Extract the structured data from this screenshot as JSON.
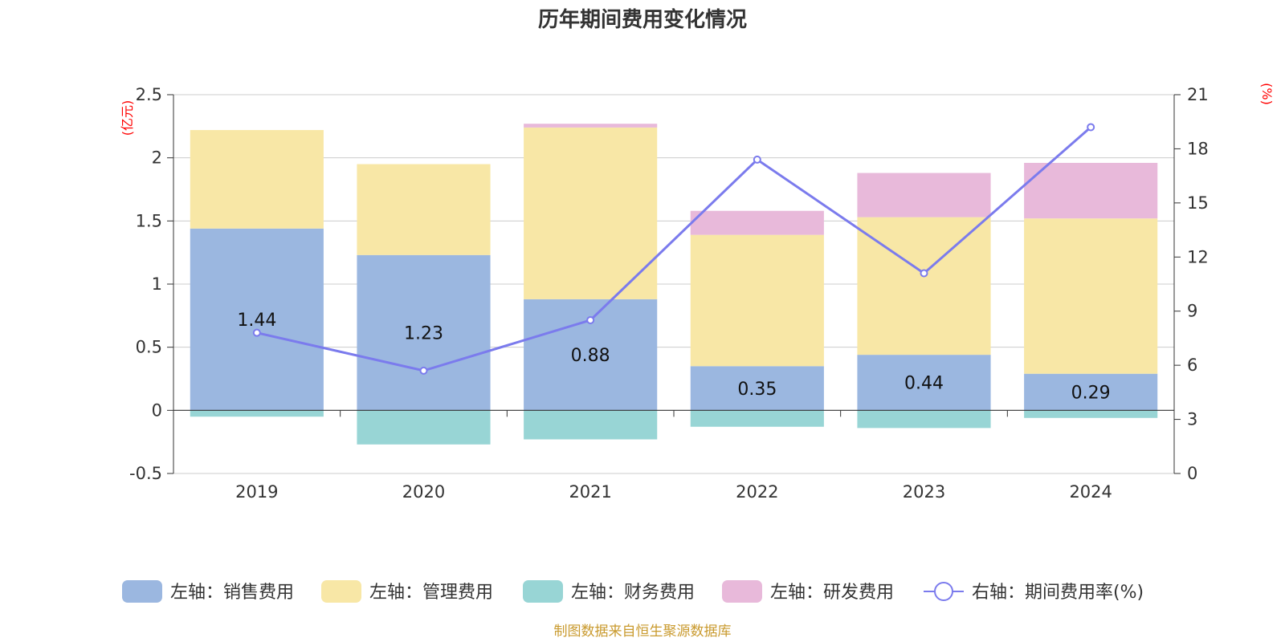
{
  "chart_data": {
    "type": "bar",
    "title": "历年期间费用变化情况",
    "categories": [
      "2019",
      "2020",
      "2021",
      "2022",
      "2023",
      "2024"
    ],
    "left_axis": {
      "unit": "(亿元)",
      "ylim": [
        -0.5,
        2.5
      ],
      "ticks": [
        "-0.5",
        "0",
        "0.5",
        "1",
        "1.5",
        "2",
        "2.5"
      ]
    },
    "right_axis": {
      "unit": "(%)",
      "ylim": [
        0,
        21
      ],
      "ticks": [
        "0",
        "3",
        "6",
        "9",
        "12",
        "15",
        "18",
        "21"
      ]
    },
    "series": [
      {
        "name": "左轴：销售费用",
        "type": "bar",
        "axis": "left",
        "color": "#9bb7e0",
        "values": [
          1.44,
          1.23,
          0.88,
          0.35,
          0.44,
          0.29
        ],
        "labels": [
          "1.44",
          "1.23",
          "0.88",
          "0.35",
          "0.44",
          "0.29"
        ]
      },
      {
        "name": "左轴：管理费用",
        "type": "bar",
        "axis": "left",
        "color": "#f8e7a6",
        "values": [
          0.78,
          0.72,
          1.36,
          1.04,
          1.09,
          1.23
        ]
      },
      {
        "name": "左轴：财务费用",
        "type": "bar",
        "axis": "left",
        "color": "#98d5d5",
        "values": [
          -0.05,
          -0.27,
          -0.23,
          -0.13,
          -0.14,
          -0.06
        ]
      },
      {
        "name": "左轴：研发费用",
        "type": "bar",
        "axis": "left",
        "color": "#e8b9da",
        "values": [
          0.0,
          0.0,
          0.03,
          0.19,
          0.35,
          0.44
        ]
      },
      {
        "name": "右轴：期间费用率(%)",
        "type": "line",
        "axis": "right",
        "color": "#7b7bed",
        "values": [
          7.8,
          5.7,
          8.5,
          17.4,
          11.1,
          19.2
        ]
      }
    ]
  },
  "source": "制图数据来自恒生聚源数据库",
  "colors": {
    "left_unit": "#ff0000",
    "right_unit": "#ff0000",
    "source": "#c99a2e",
    "axis": "#333333",
    "grid": "#cccccc"
  }
}
